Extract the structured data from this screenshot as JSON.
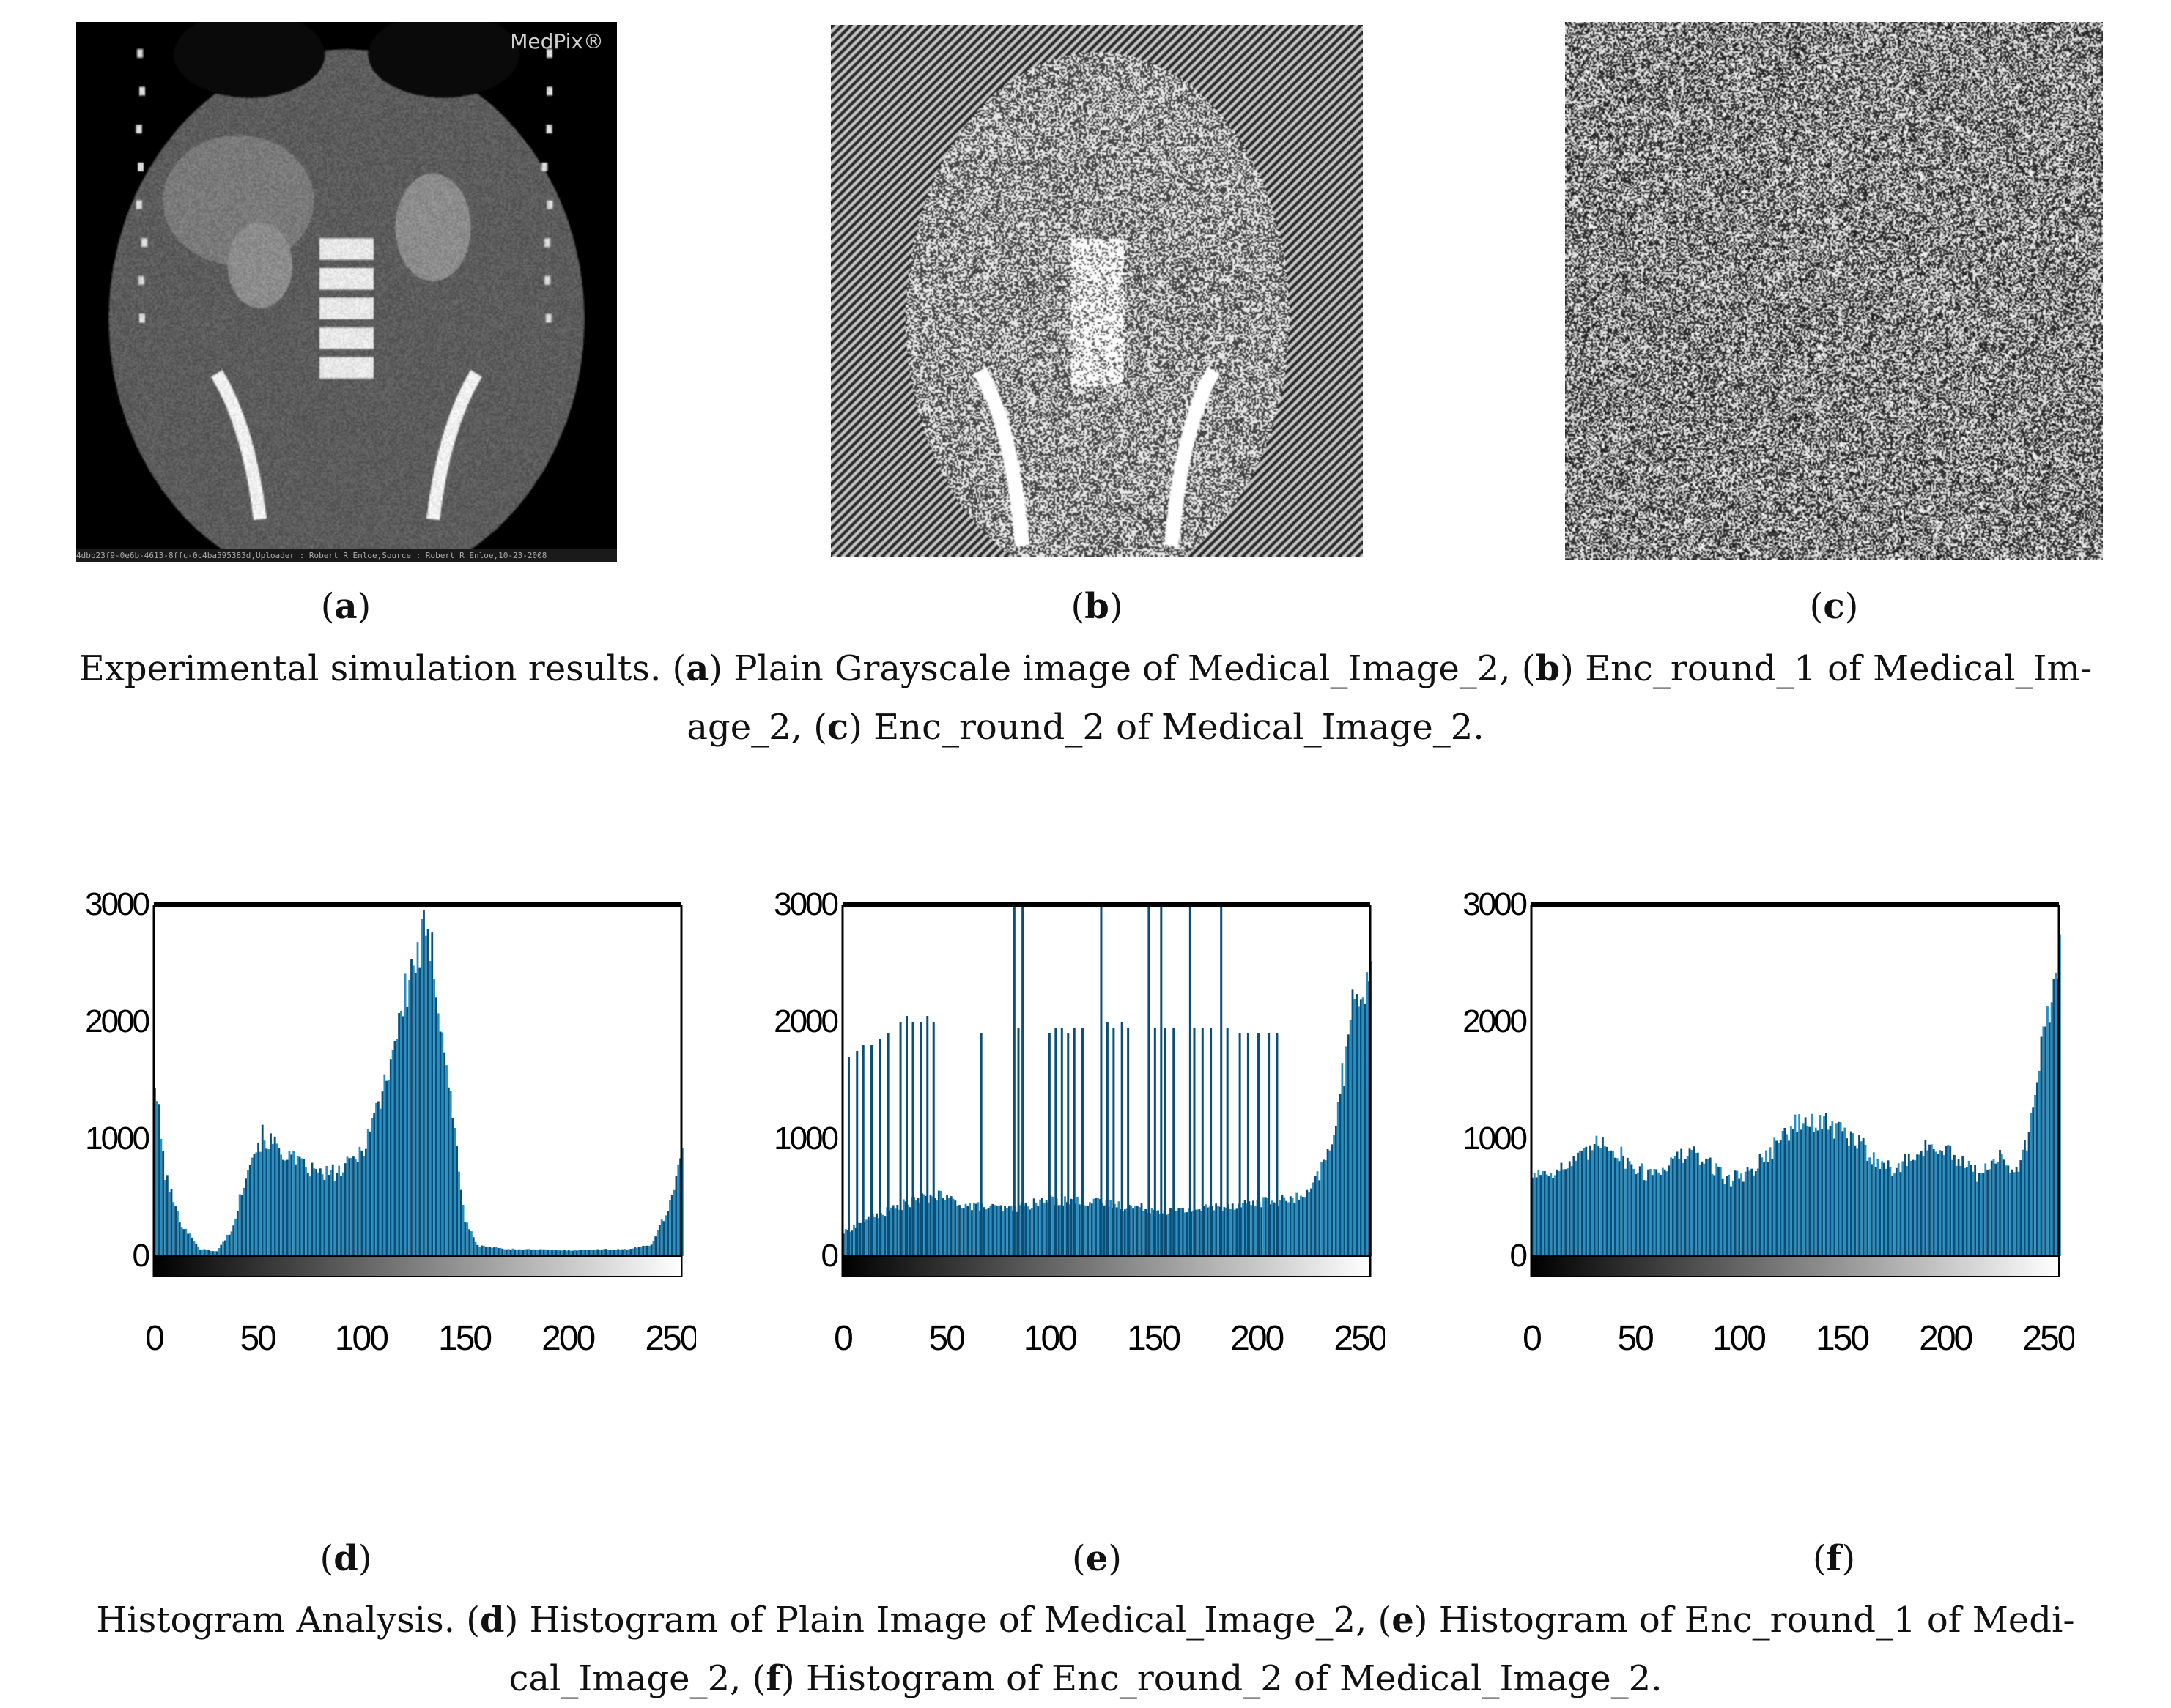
{
  "panels": {
    "a": {
      "letter": "a",
      "watermark": "MedPix®",
      "footer": "4dbb23f9-0e6b-4613-8ffc-0c4ba595383d,Uploader : Robert R Enloe,Source : Robert R Enloe,10-23-2008"
    },
    "b": {
      "letter": "b"
    },
    "c": {
      "letter": "c"
    },
    "d": {
      "letter": "d"
    },
    "e": {
      "letter": "e"
    },
    "f": {
      "letter": "f"
    }
  },
  "captions": {
    "top": {
      "lead": "Experimental simulation results. (",
      "a": "a",
      "t1": ") Plain Grayscale image of Medical_Image_2, (",
      "b": "b",
      "t2": ") Enc_round_1 of Medical_Im-",
      "t3": "age_2, (",
      "c": "c",
      "t4": ") Enc_round_2 of Medical_Image_2."
    },
    "bottom": {
      "lead": "Histogram Analysis. (",
      "d": "d",
      "t1": ") Histogram of Plain Image of Medical_Image_2, (",
      "e": "e",
      "t2": ") Histogram of Enc_round_1 of Medi-",
      "t3": "cal_Image_2, (",
      "f": "f",
      "t4": ") Histogram of Enc_round_2 of Medical_Image_2."
    }
  },
  "colors": {
    "bar": "#2a8fc0",
    "bar_dark": "#0b4f78",
    "frame": "#000000"
  },
  "chart_data": [
    {
      "type": "bar",
      "panel": "d",
      "xlim": [
        0,
        255
      ],
      "ylim": [
        0,
        3000
      ],
      "x_ticks": [
        0,
        50,
        100,
        150,
        200,
        250
      ],
      "y_ticks": [
        0,
        1000,
        2000,
        3000
      ],
      "profile": [
        [
          0,
          1500
        ],
        [
          5,
          700
        ],
        [
          12,
          300
        ],
        [
          22,
          60
        ],
        [
          30,
          40
        ],
        [
          38,
          250
        ],
        [
          45,
          800
        ],
        [
          52,
          1020
        ],
        [
          60,
          920
        ],
        [
          70,
          780
        ],
        [
          80,
          700
        ],
        [
          90,
          720
        ],
        [
          100,
          900
        ],
        [
          110,
          1400
        ],
        [
          118,
          2000
        ],
        [
          125,
          2500
        ],
        [
          130,
          2700
        ],
        [
          135,
          2500
        ],
        [
          140,
          1800
        ],
        [
          146,
          900
        ],
        [
          150,
          300
        ],
        [
          156,
          90
        ],
        [
          170,
          60
        ],
        [
          200,
          50
        ],
        [
          230,
          60
        ],
        [
          240,
          100
        ],
        [
          248,
          400
        ],
        [
          255,
          900
        ]
      ],
      "spikes": []
    },
    {
      "type": "bar",
      "panel": "e",
      "xlim": [
        0,
        255
      ],
      "ylim": [
        0,
        3000
      ],
      "x_ticks": [
        0,
        50,
        100,
        150,
        200,
        250
      ],
      "y_ticks": [
        0,
        1000,
        2000,
        3000
      ],
      "profile": [
        [
          0,
          200
        ],
        [
          10,
          300
        ],
        [
          30,
          450
        ],
        [
          45,
          520
        ],
        [
          60,
          430
        ],
        [
          80,
          400
        ],
        [
          100,
          480
        ],
        [
          120,
          460
        ],
        [
          140,
          420
        ],
        [
          160,
          380
        ],
        [
          180,
          420
        ],
        [
          200,
          460
        ],
        [
          215,
          480
        ],
        [
          225,
          520
        ],
        [
          235,
          900
        ],
        [
          242,
          1600
        ],
        [
          248,
          2300
        ],
        [
          255,
          2400
        ]
      ],
      "spikes": [
        [
          3,
          1700
        ],
        [
          7,
          1750
        ],
        [
          10,
          1800
        ],
        [
          14,
          1800
        ],
        [
          18,
          1850
        ],
        [
          22,
          1900
        ],
        [
          28,
          2000
        ],
        [
          31,
          2050
        ],
        [
          34,
          2000
        ],
        [
          38,
          2000
        ],
        [
          41,
          2050
        ],
        [
          44,
          2000
        ],
        [
          67,
          1900
        ],
        [
          83,
          3000
        ],
        [
          85,
          1950
        ],
        [
          87,
          3000
        ],
        [
          100,
          1900
        ],
        [
          103,
          1950
        ],
        [
          106,
          1950
        ],
        [
          109,
          1900
        ],
        [
          112,
          1950
        ],
        [
          116,
          1950
        ],
        [
          125,
          3000
        ],
        [
          128,
          2000
        ],
        [
          131,
          1950
        ],
        [
          135,
          2000
        ],
        [
          138,
          1950
        ],
        [
          148,
          3000
        ],
        [
          151,
          1950
        ],
        [
          154,
          3000
        ],
        [
          156,
          1950
        ],
        [
          160,
          1950
        ],
        [
          168,
          3000
        ],
        [
          170,
          1950
        ],
        [
          174,
          1950
        ],
        [
          178,
          1950
        ],
        [
          183,
          3000
        ],
        [
          186,
          1950
        ],
        [
          192,
          1900
        ],
        [
          196,
          1900
        ],
        [
          201,
          1900
        ],
        [
          206,
          1900
        ],
        [
          210,
          1900
        ]
      ]
    },
    {
      "type": "bar",
      "panel": "f",
      "xlim": [
        0,
        255
      ],
      "ylim": [
        0,
        3000
      ],
      "x_ticks": [
        0,
        50,
        100,
        150,
        200,
        250
      ],
      "y_ticks": [
        0,
        1000,
        2000,
        3000
      ],
      "profile": [
        [
          0,
          700
        ],
        [
          15,
          750
        ],
        [
          25,
          850
        ],
        [
          35,
          1000
        ],
        [
          45,
          820
        ],
        [
          55,
          700
        ],
        [
          65,
          780
        ],
        [
          75,
          880
        ],
        [
          85,
          800
        ],
        [
          95,
          650
        ],
        [
          105,
          720
        ],
        [
          115,
          900
        ],
        [
          125,
          1100
        ],
        [
          135,
          1150
        ],
        [
          145,
          1100
        ],
        [
          155,
          1000
        ],
        [
          165,
          850
        ],
        [
          175,
          720
        ],
        [
          185,
          880
        ],
        [
          195,
          950
        ],
        [
          205,
          820
        ],
        [
          215,
          700
        ],
        [
          225,
          850
        ],
        [
          235,
          700
        ],
        [
          242,
          1200
        ],
        [
          248,
          2000
        ],
        [
          255,
          2550
        ]
      ],
      "spikes": []
    }
  ]
}
